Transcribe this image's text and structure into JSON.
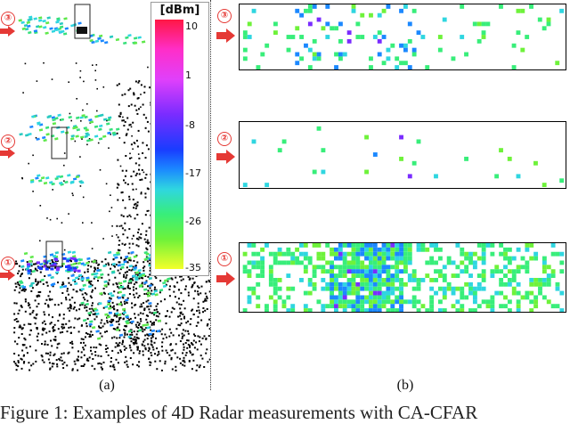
{
  "colorbar": {
    "unit": "[dBm]",
    "ticks": [
      "10",
      "1",
      "-8",
      "-17",
      "-26",
      "-35"
    ]
  },
  "markers": [
    "③",
    "②",
    "①"
  ],
  "sublabels": {
    "a": "(a)",
    "b": "(b)"
  },
  "caption": "Figure 1: Examples of 4D Radar measurements with CA-CFAR",
  "colors": {
    "marker": "#e53935",
    "border": "#000000"
  }
}
